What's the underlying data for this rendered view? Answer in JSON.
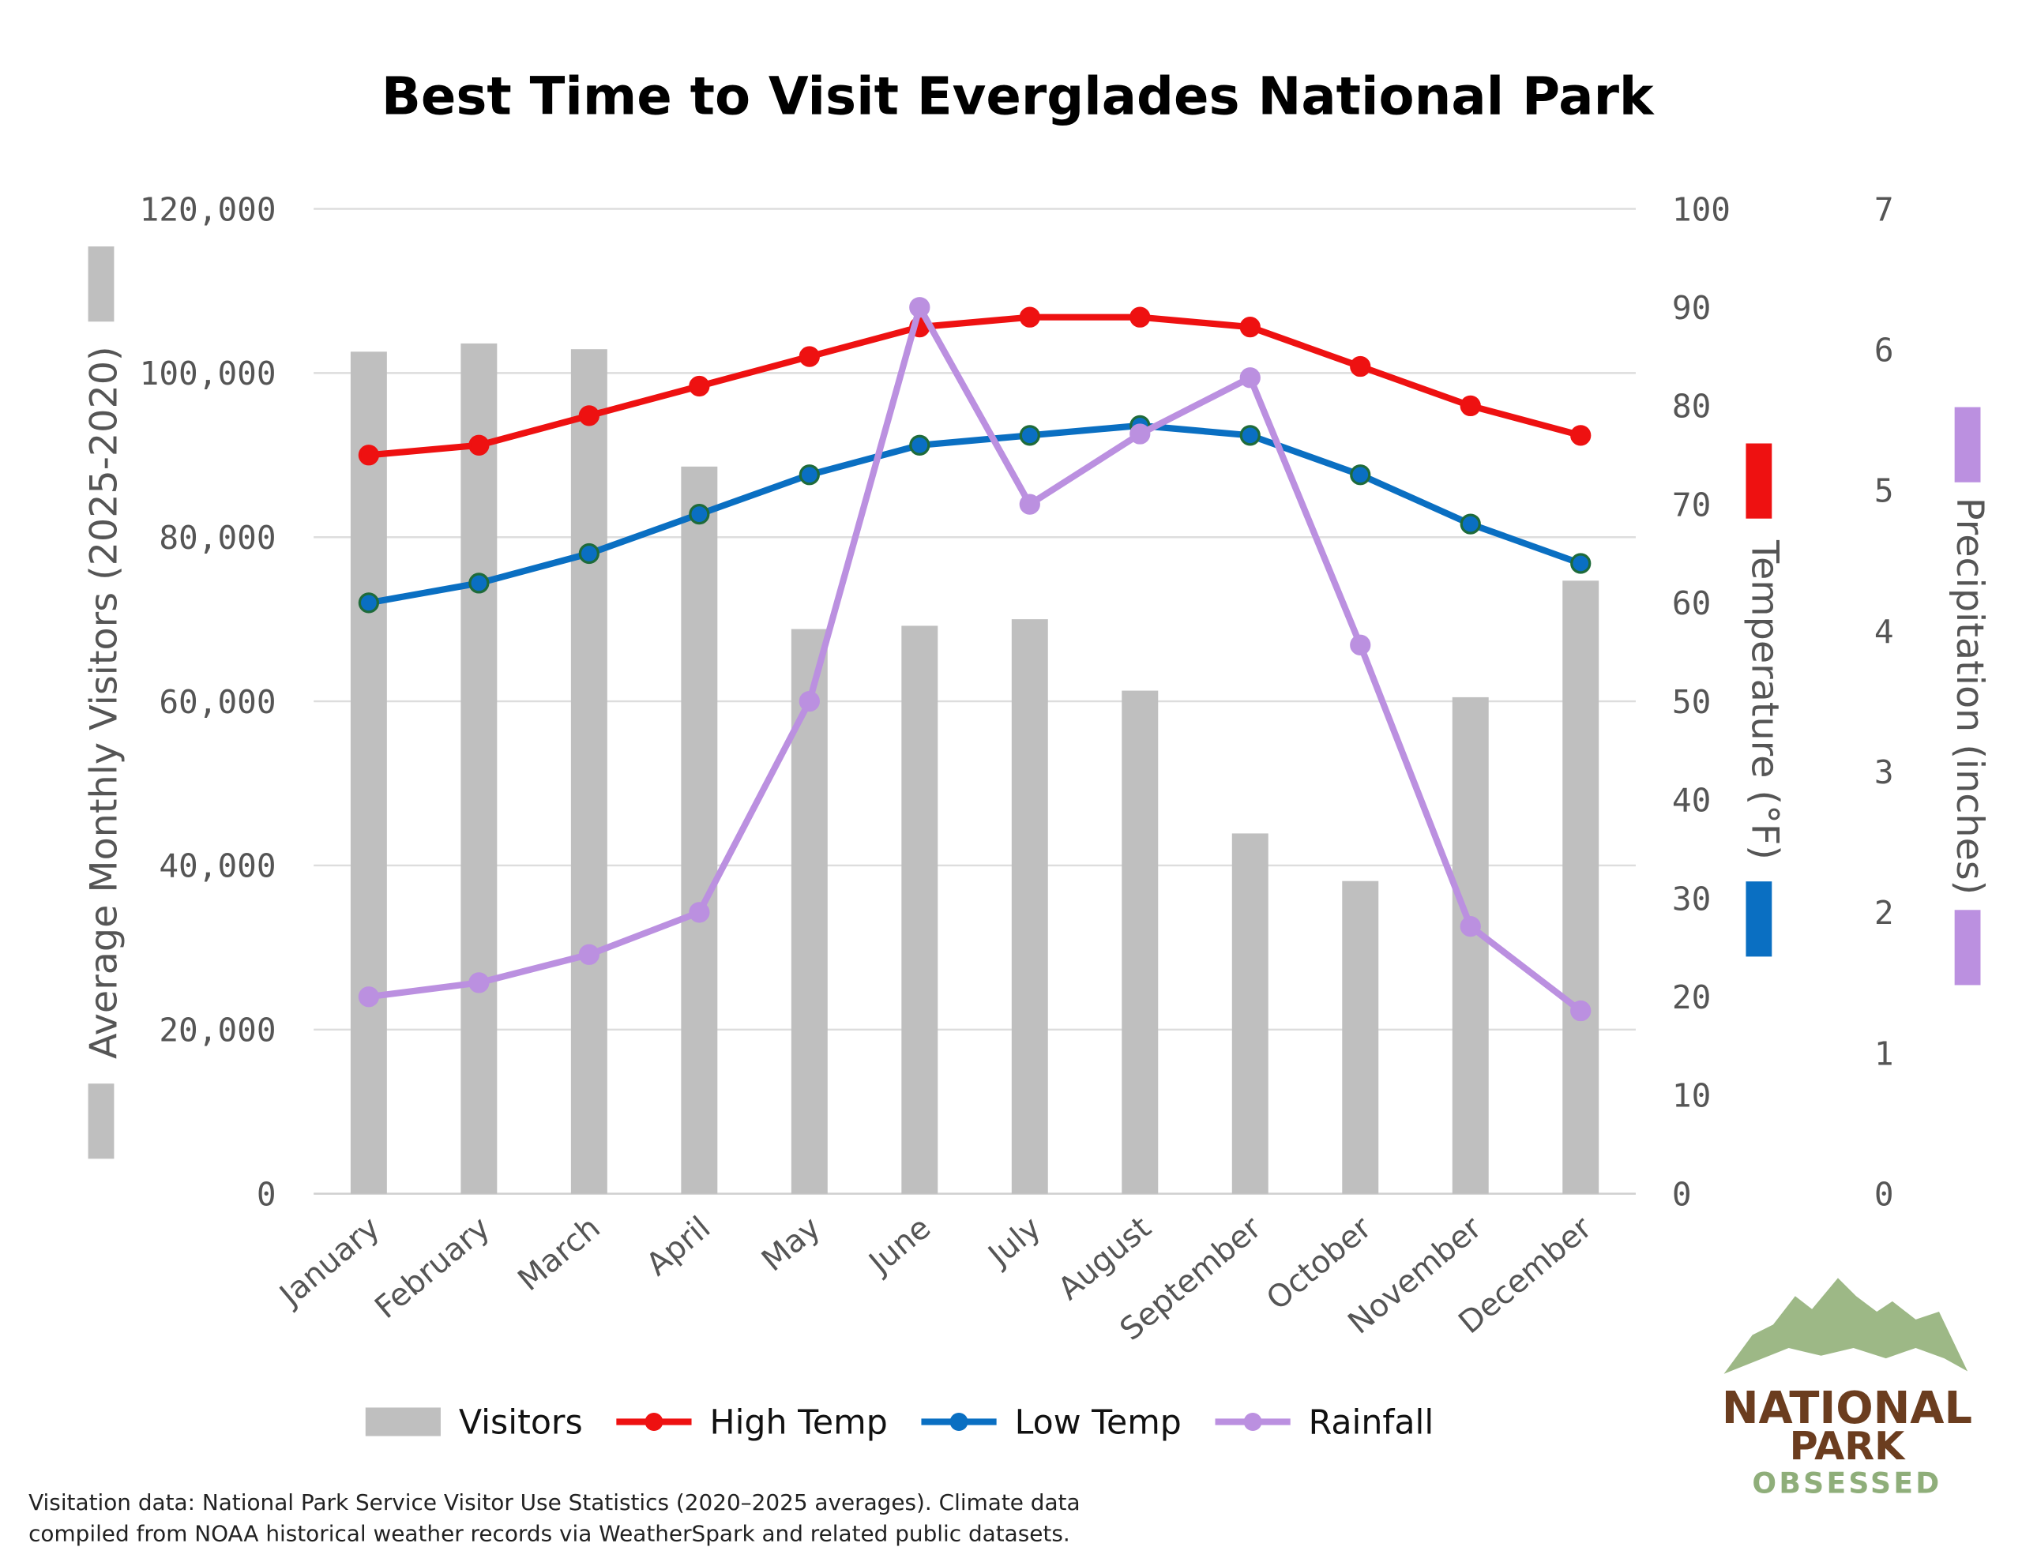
{
  "chart_data": {
    "type": "bar+line",
    "title": "Best Time to Visit Everglades National Park",
    "categories": [
      "January",
      "February",
      "March",
      "April",
      "May",
      "June",
      "July",
      "August",
      "September",
      "October",
      "November",
      "December"
    ],
    "y_left": {
      "label": "Average Monthly Visitors (2025-2020)",
      "range": [
        0,
        120000
      ],
      "ticks": [
        "0",
        "20,000",
        "40,000",
        "60,000",
        "80,000",
        "100,000",
        "120,000"
      ]
    },
    "y_right1": {
      "label": "Temperature (°F)",
      "range": [
        0,
        100
      ],
      "ticks": [
        "0",
        "10",
        "20",
        "30",
        "40",
        "50",
        "60",
        "70",
        "80",
        "90",
        "100"
      ]
    },
    "y_right2": {
      "label": "Precipitation (inches)",
      "range": [
        0,
        7
      ],
      "ticks": [
        "0",
        "1",
        "2",
        "3",
        "4",
        "5",
        "6",
        "7"
      ]
    },
    "grid": true,
    "legend_placement": "bottom",
    "series": [
      {
        "name": "Visitors",
        "type": "bar",
        "axis": "left",
        "color": "#bfbfbf",
        "values": [
          102600,
          103600,
          102900,
          88600,
          68800,
          69200,
          70000,
          61300,
          43900,
          38100,
          60500,
          74700
        ]
      },
      {
        "name": "High Temp",
        "type": "line",
        "axis": "temperature",
        "color": "#ee1111",
        "values": [
          75,
          76,
          79,
          82,
          85,
          88,
          89,
          89,
          88,
          84,
          80,
          77
        ]
      },
      {
        "name": "Low Temp",
        "type": "line",
        "axis": "temperature",
        "color": "#0a6fc2",
        "values": [
          60,
          62,
          65,
          69,
          73,
          76,
          77,
          78,
          77,
          73,
          68,
          64
        ]
      },
      {
        "name": "Rainfall",
        "type": "line",
        "axis": "precipitation",
        "color": "#bb90e0",
        "values": [
          1.4,
          1.5,
          1.7,
          2.0,
          3.5,
          6.3,
          4.9,
          5.4,
          5.8,
          3.9,
          1.9,
          1.3
        ]
      }
    ]
  },
  "footer": {
    "line1": "Visitation data: National Park Service Visitor Use Statistics (2020–2025 averages). Climate data",
    "line2": "compiled from NOAA historical weather records via WeatherSpark and related public datasets."
  },
  "logo": {
    "line1": "NATIONAL",
    "line2": "PARK",
    "line3": "OBSESSED",
    "colors": {
      "mountain": "#9db886",
      "brown": "#6b3d1f",
      "green": "#8fae7a"
    }
  }
}
